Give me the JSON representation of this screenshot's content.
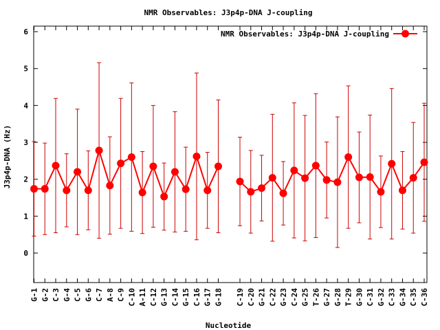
{
  "chart_data": {
    "type": "line",
    "title": "NMR Observables: J3p4p-DNA J-coupling",
    "xlabel": "Nucleotide",
    "ylabel": "J3p4p-DNA (Hz)",
    "ylim": [
      -0.8,
      6.15
    ],
    "yticks": [
      0,
      1,
      2,
      3,
      4,
      5,
      6
    ],
    "grid": false,
    "legend_position": "top-right",
    "color": "#ff0000",
    "errorbar_color": "#cc0000",
    "categories": [
      "G-1",
      "G-2",
      "C-3",
      "G-4",
      "C-5",
      "G-6",
      "C-7",
      "A-8",
      "C-9",
      "C-10",
      "A-11",
      "C-12",
      "G-13",
      "C-14",
      "G-15",
      "C-16",
      "G-17",
      "G-18",
      "",
      "C-19",
      "C-20",
      "G-21",
      "C-22",
      "G-23",
      "C-24",
      "G-25",
      "T-26",
      "G-27",
      "G-28",
      "T-29",
      "G-30",
      "C-31",
      "G-32",
      "C-33",
      "G-34",
      "C-35",
      "C-36"
    ],
    "series": [
      {
        "name": "NMR Observables: J3p4p-DNA J-coupling",
        "values": [
          1.74,
          1.74,
          2.37,
          1.7,
          2.2,
          1.7,
          2.78,
          1.83,
          2.43,
          2.6,
          1.64,
          2.35,
          1.53,
          2.2,
          1.73,
          2.62,
          1.7,
          2.35,
          null,
          1.94,
          1.66,
          1.76,
          2.04,
          1.62,
          2.24,
          2.03,
          2.37,
          1.98,
          1.92,
          2.6,
          2.05,
          2.06,
          1.66,
          2.42,
          1.7,
          2.04,
          2.46
        ],
        "errors": [
          1.28,
          1.24,
          1.82,
          0.99,
          1.7,
          1.07,
          2.38,
          1.32,
          1.76,
          2.01,
          1.11,
          1.65,
          0.91,
          1.63,
          1.14,
          2.26,
          1.03,
          1.8,
          null,
          1.2,
          1.12,
          0.89,
          1.72,
          0.86,
          1.83,
          1.7,
          1.95,
          1.03,
          1.77,
          1.93,
          1.23,
          1.68,
          0.97,
          2.04,
          1.05,
          1.5,
          1.6
        ]
      }
    ]
  }
}
